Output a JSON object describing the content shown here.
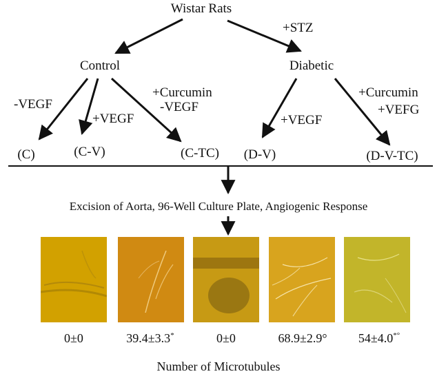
{
  "tree": {
    "root": "Wistar Rats",
    "root_edge_label": "+STZ",
    "groups": [
      {
        "label": "Control"
      },
      {
        "label": "Diabetic"
      }
    ],
    "edge_labels": {
      "c_minus_vegf": "-VEGF",
      "c_plus_vegf": "+VEGF",
      "c_curcumin_line1": "+Curcumin",
      "c_curcumin_line2": "-VEGF",
      "d_plus_vegf": "+VEGF",
      "d_curcumin_line1": "+Curcumin",
      "d_curcumin_line2": "+VEFG"
    },
    "leaves": [
      "(C)",
      "(C-V)",
      "(C-TC)",
      "(D-V)",
      "(D-V-TC)"
    ]
  },
  "process_step": "Excision of Aorta, 96-Well Culture Plate, Angiogenic Response",
  "results": [
    {
      "value": "0±0",
      "mark": "",
      "color": "#d9a800"
    },
    {
      "value": "39.4±3.3",
      "mark": "*",
      "color": "#d08a12"
    },
    {
      "value": "0±0",
      "mark": "",
      "color": "#c79a14"
    },
    {
      "value": "68.9±2.9°",
      "mark": "",
      "color": "#d8a41e"
    },
    {
      "value": "54±4.0",
      "mark": "*°",
      "color": "#c2b52a"
    }
  ],
  "footer_label": "Number of Microtubules"
}
